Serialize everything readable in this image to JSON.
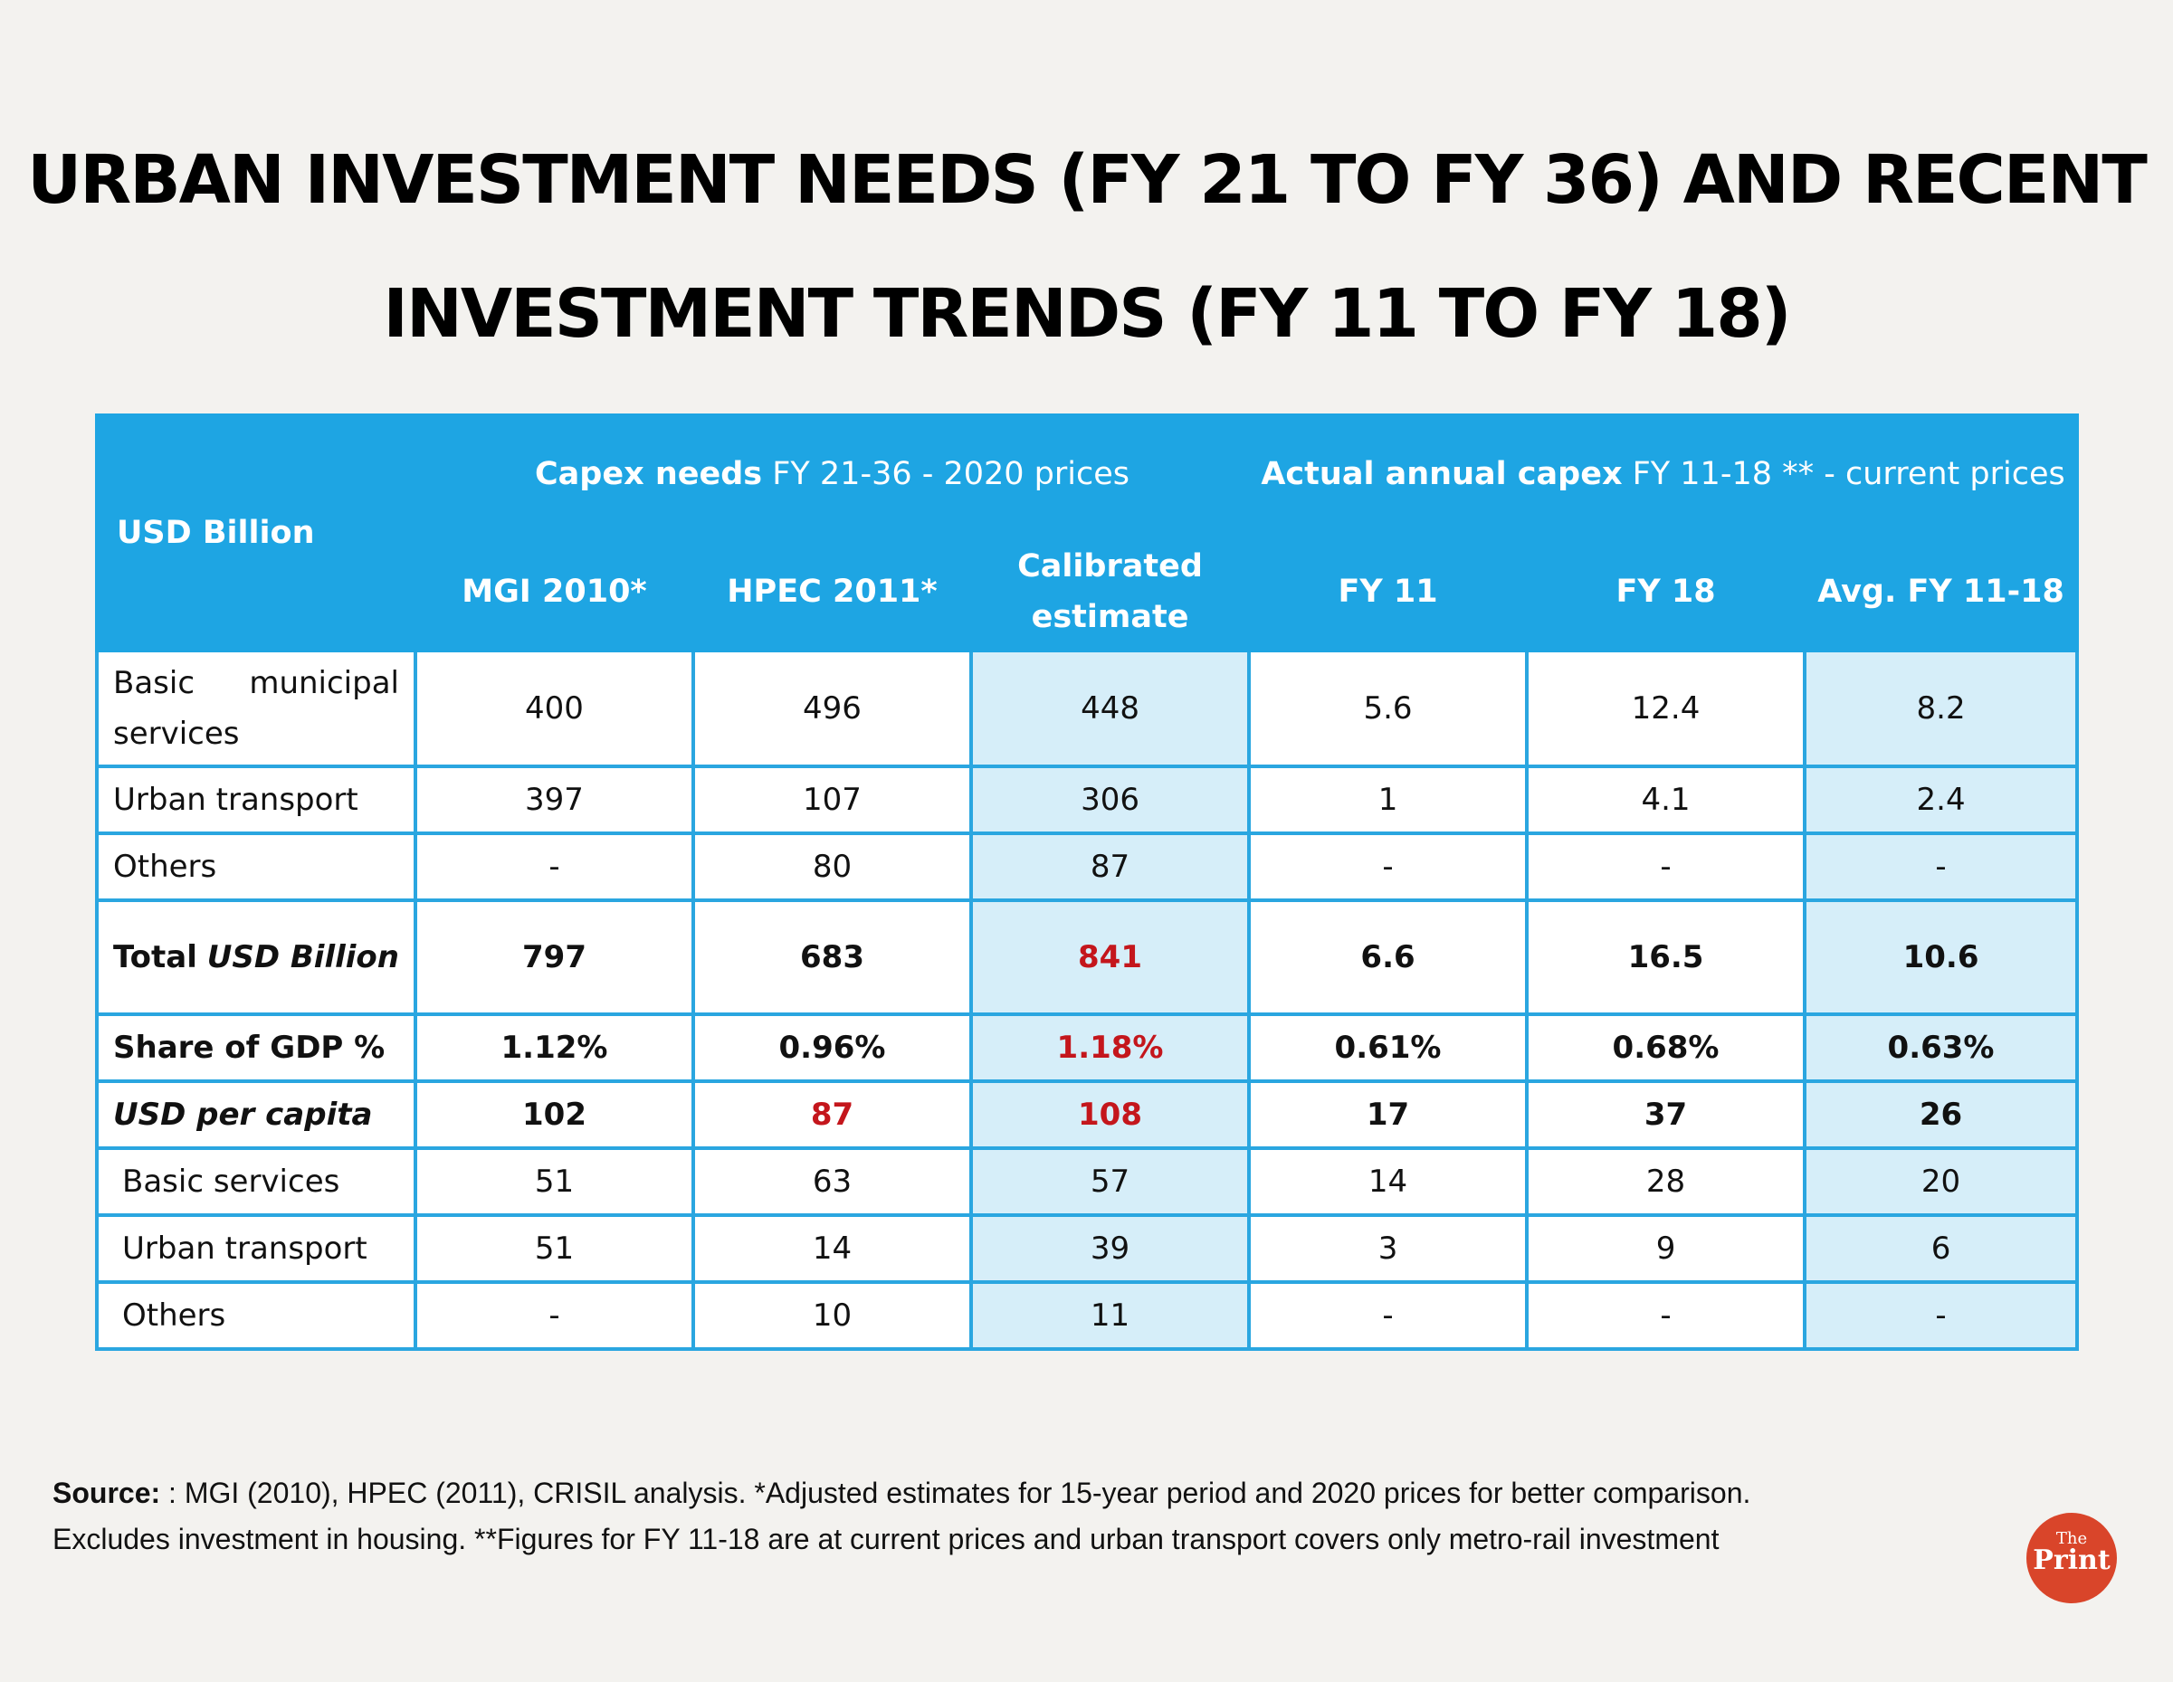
{
  "title": {
    "line1": "URBAN INVESTMENT NEEDS (FY 21 TO FY 36) AND RECENT",
    "line2": "INVESTMENT TRENDS (FY 11 TO FY 18)"
  },
  "chart_data": {
    "type": "table",
    "corner_label": "USD Billion",
    "group_headers": [
      {
        "bold": "Capex needs",
        "normal": " FY 21-36 - 2020 prices"
      },
      {
        "bold": "Actual annual capex",
        "normal": " FY 11-18 ** - current prices"
      }
    ],
    "columns": [
      "MGI 2010*",
      "HPEC 2011*",
      "Calibrated estimate",
      "FY 11",
      "FY 18",
      "Avg. FY 11-18"
    ],
    "rows": [
      {
        "label": "Basic municipal services",
        "values": [
          "400",
          "496",
          "448",
          "5.6",
          "12.4",
          "8.2"
        ]
      },
      {
        "label": "Urban transport",
        "values": [
          "397",
          "107",
          "306",
          "1",
          "4.1",
          "2.4"
        ]
      },
      {
        "label": "Others",
        "values": [
          "-",
          "80",
          "87",
          "-",
          "-",
          "-"
        ]
      },
      {
        "label_a": "Total",
        "label_b": "USD Billion",
        "values": [
          "797",
          "683",
          "841",
          "6.6",
          "16.5",
          "10.6"
        ]
      },
      {
        "label": "Share of GDP %",
        "values": [
          "1.12%",
          "0.96%",
          "1.18%",
          "0.61%",
          "0.68%",
          "0.63%"
        ]
      },
      {
        "label": "USD per capita",
        "values": [
          "102",
          "87",
          "108",
          "17",
          "37",
          "26"
        ]
      },
      {
        "label": "Basic services",
        "values": [
          "51",
          "63",
          "57",
          "14",
          "28",
          "20"
        ]
      },
      {
        "label": "Urban transport",
        "values": [
          "51",
          "14",
          "39",
          "3",
          "9",
          "6"
        ]
      },
      {
        "label": "Others",
        "values": [
          "-",
          "10",
          "11",
          "-",
          "-",
          "-"
        ]
      }
    ],
    "highlight_color": "#c4161c"
  },
  "source": {
    "label": "Source:",
    "text": " : MGI (2010), HPEC (2011), CRISIL analysis. *Adjusted estimates for 15-year period and 2020 prices for better comparison. Excludes investment in housing. **Figures for FY 11-18 are at current prices and urban transport covers only metro-rail investment"
  },
  "logo": {
    "the": "The",
    "print": "Print"
  }
}
